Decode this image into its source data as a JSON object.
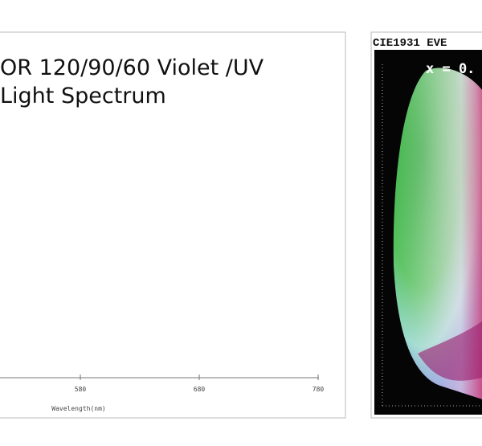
{
  "chart_data": {
    "type": "line",
    "title_lines": [
      "OR 120/90/60 Violet /UV",
      "Light Spectrum"
    ],
    "xlabel": "Wavelength(nm)",
    "xlim": [
      512.4,
      780
    ],
    "xticks": [
      580,
      680,
      780
    ]
  },
  "cie_panel": {
    "title": "CIE1931 EVE",
    "readout": "x = 0."
  }
}
